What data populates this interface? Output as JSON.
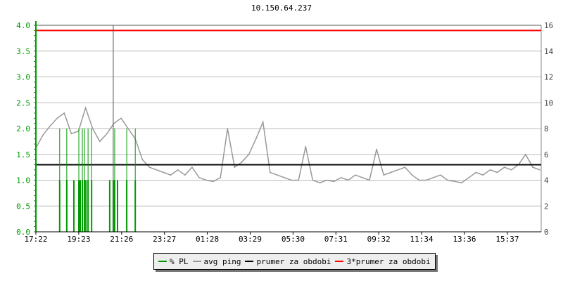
{
  "chart_data": {
    "type": "line",
    "title": "10.150.64.237",
    "left_axis": {
      "range": [
        0,
        4.0
      ],
      "ticks": [
        "0.0",
        "0.5",
        "1.0",
        "1.5",
        "2.0",
        "2.5",
        "3.0",
        "3.5",
        "4.0"
      ],
      "color": "#009900"
    },
    "right_axis": {
      "range": [
        0,
        16
      ],
      "ticks": [
        "0",
        "2",
        "4",
        "6",
        "8",
        "10",
        "12",
        "14",
        "16"
      ]
    },
    "x_ticks": [
      "17:22",
      "19:23",
      "21:26",
      "23:27",
      "01:28",
      "03:29",
      "05:30",
      "07:31",
      "09:32",
      "11:34",
      "13:36",
      "15:37"
    ],
    "grid": true,
    "legend_position": "bottom",
    "series": [
      {
        "name": "% PL",
        "color": "#009900",
        "axis": "left",
        "style": "impulse",
        "points": [
          [
            "17:22",
            1
          ],
          [
            "18:29",
            2
          ],
          [
            "18:49",
            2
          ],
          [
            "19:09",
            1
          ],
          [
            "19:23",
            2
          ],
          [
            "19:27",
            1
          ],
          [
            "19:33",
            2
          ],
          [
            "19:39",
            2
          ],
          [
            "19:43",
            1
          ],
          [
            "19:49",
            2
          ],
          [
            "19:59",
            2
          ],
          [
            "20:50",
            1
          ],
          [
            "21:00",
            4
          ],
          [
            "21:04",
            2
          ],
          [
            "21:12",
            1
          ],
          [
            "21:38",
            2
          ],
          [
            "22:02",
            2
          ]
        ]
      },
      {
        "name": "avg ping",
        "color": "#999999",
        "axis": "right",
        "x": [
          "17:22",
          "17:42",
          "18:02",
          "18:22",
          "18:42",
          "19:02",
          "19:22",
          "19:42",
          "20:02",
          "20:22",
          "20:42",
          "21:02",
          "21:22",
          "21:42",
          "22:02",
          "22:22",
          "22:42",
          "23:02",
          "23:22",
          "23:42",
          "00:02",
          "00:22",
          "00:42",
          "01:02",
          "01:22",
          "01:42",
          "02:02",
          "02:22",
          "02:42",
          "03:02",
          "03:22",
          "03:42",
          "04:02",
          "04:22",
          "04:42",
          "05:02",
          "05:22",
          "05:42",
          "06:02",
          "06:22",
          "06:42",
          "07:02",
          "07:22",
          "07:42",
          "08:02",
          "08:22",
          "08:42",
          "09:02",
          "09:22",
          "09:42",
          "10:02",
          "10:22",
          "10:42",
          "11:02",
          "11:22",
          "11:42",
          "12:02",
          "12:22",
          "12:42",
          "13:02",
          "13:22",
          "13:42",
          "14:02",
          "14:22",
          "14:42",
          "15:02",
          "15:22",
          "15:42",
          "16:02",
          "16:22",
          "16:42",
          "17:02"
        ],
        "values": [
          6.5,
          7.5,
          8.2,
          8.8,
          9.2,
          7.6,
          7.8,
          9.6,
          8.0,
          7.0,
          7.6,
          8.4,
          8.8,
          8.0,
          7.2,
          5.6,
          5.0,
          4.8,
          4.6,
          4.4,
          4.8,
          4.4,
          5.0,
          4.2,
          4.0,
          3.9,
          4.2,
          8.0,
          5.0,
          5.4,
          6.0,
          7.2,
          8.5,
          4.6,
          4.4,
          4.2,
          4.0,
          4.0,
          6.6,
          4.0,
          3.8,
          4.0,
          3.9,
          4.2,
          4.0,
          4.4,
          4.2,
          4.0,
          6.4,
          4.4,
          4.6,
          4.8,
          5.0,
          4.4,
          4.0,
          4.0,
          4.2,
          4.4,
          4.0,
          3.9,
          3.8,
          4.2,
          4.6,
          4.4,
          4.8,
          4.6,
          5.0,
          4.8,
          5.2,
          6.0,
          5.0,
          4.8
        ]
      },
      {
        "name": "prumer za obdobi",
        "color": "#000000",
        "axis": "right",
        "value": 5.2
      },
      {
        "name": "3*prumer za obdobi",
        "color": "#ff0000",
        "axis": "right",
        "value": 15.6
      }
    ]
  }
}
